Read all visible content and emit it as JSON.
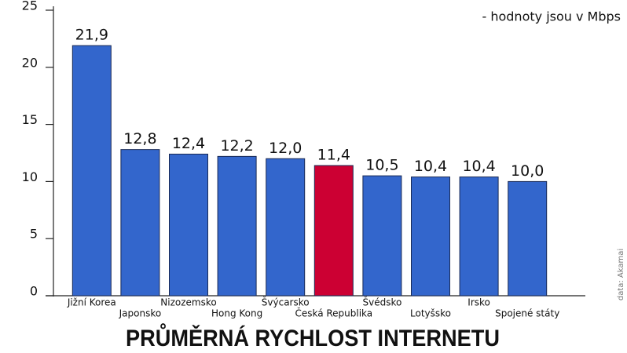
{
  "chart_data": {
    "type": "bar",
    "title": "PRŮMĚRNÁ RYCHLOST INTERNETU",
    "annotation": "- hodnoty jsou v Mbps",
    "source": "data: Akamai",
    "categories": [
      "Jižní Korea",
      "Japonsko",
      "Nizozemsko",
      "Hong Kong",
      "Švýcarsko",
      "Česká Republika",
      "Švédsko",
      "Lotyšsko",
      "Irsko",
      "Spojené státy"
    ],
    "values": [
      21.9,
      12.8,
      12.4,
      12.2,
      12.0,
      11.4,
      10.5,
      10.4,
      10.4,
      10.0
    ],
    "value_labels": [
      "21,9",
      "12,8",
      "12,4",
      "12,2",
      "12,0",
      "11,4",
      "10,5",
      "10,4",
      "10,4",
      "10,0"
    ],
    "colors": [
      "#3366cc",
      "#3366cc",
      "#3366cc",
      "#3366cc",
      "#3366cc",
      "#cc0033",
      "#3366cc",
      "#3366cc",
      "#3366cc",
      "#3366cc"
    ],
    "ylim": [
      0,
      25
    ],
    "yticks": [
      0,
      5,
      10,
      15,
      20,
      25
    ],
    "grid": false
  }
}
